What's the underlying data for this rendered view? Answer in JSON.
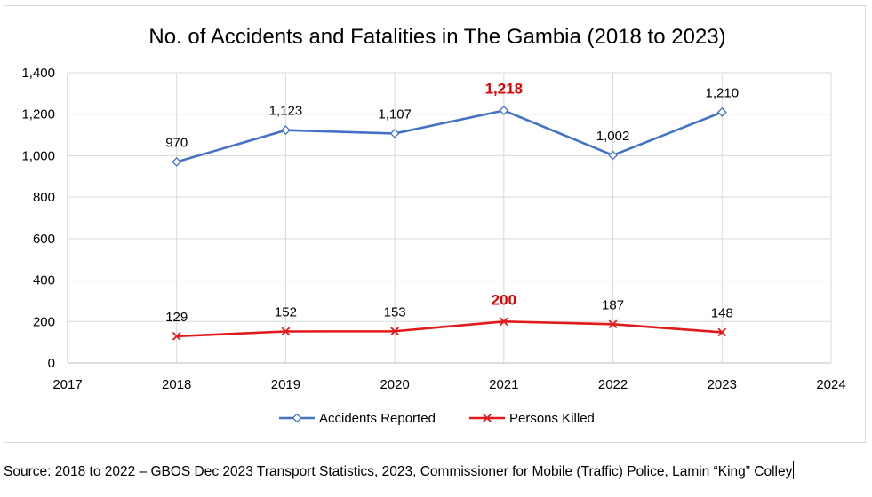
{
  "chart_data": {
    "type": "line",
    "title": "No. of Accidents and Fatalities in The Gambia (2018 to 2023)",
    "x": [
      2018,
      2019,
      2020,
      2021,
      2022,
      2023
    ],
    "xlim": [
      2017,
      2024
    ],
    "xticks": [
      "2017",
      "2018",
      "2019",
      "2020",
      "2021",
      "2022",
      "2023",
      "2024"
    ],
    "ylim": [
      0,
      1400
    ],
    "yticks": [
      "0",
      "200",
      "400",
      "600",
      "800",
      "1,000",
      "1,200",
      "1,400"
    ],
    "grid": true,
    "legend_position": "bottom",
    "series": [
      {
        "name": "Accidents Reported",
        "color": "#4472c4",
        "marker": "diamond",
        "values": [
          970,
          1123,
          1107,
          1218,
          1002,
          1210
        ],
        "labels": [
          "970",
          "1,123",
          "1,107",
          "1,218",
          "1,002",
          "1,210"
        ],
        "highlight_index": 3
      },
      {
        "name": "Persons Killed",
        "color": "#e31a1c",
        "marker": "x",
        "values": [
          129,
          152,
          153,
          200,
          187,
          148
        ],
        "labels": [
          "129",
          "152",
          "153",
          "200",
          "187",
          "148"
        ],
        "highlight_index": 3
      }
    ],
    "highlight_color": "#e00000"
  },
  "source": "Source: 2018 to 2022 – GBOS Dec 2023 Transport Statistics, 2023, Commissioner for Mobile (Traffic) Police, Lamin “King” Colley"
}
